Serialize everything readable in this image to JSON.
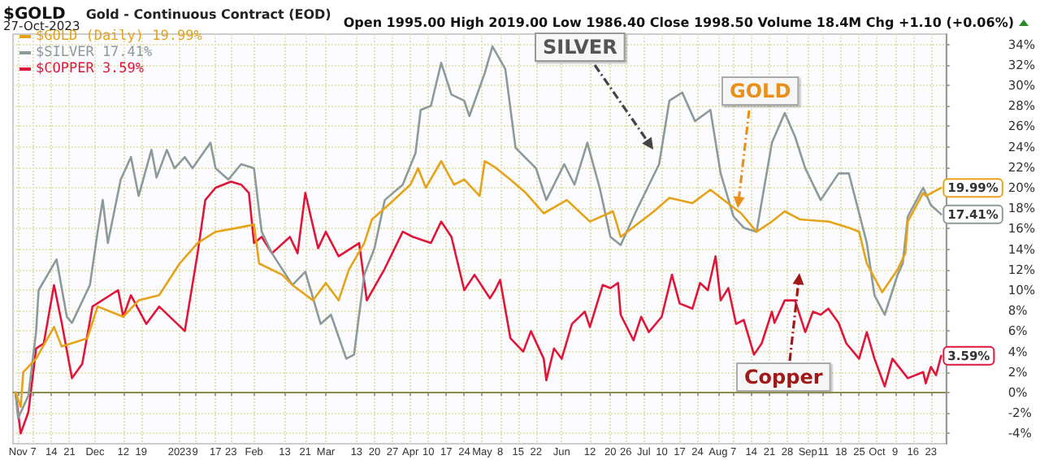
{
  "chart_data": {
    "type": "line",
    "title": "$GOLD",
    "subtitle": "Gold - Continuous Contract (EOD)",
    "annotations": [
      "27-Oct-2023",
      "Open 1995.00 High 2019.00 Low 1986.40 Close 1998.50 Volume 18.4M Chg +1.10 (+0.06%)",
      "SILVER",
      "GOLD",
      "Copper"
    ],
    "xlim": [
      "2022-10-30",
      "2023-10-29"
    ],
    "xticks": [
      {
        "value": "2022-11-01",
        "label": "Nov"
      },
      {
        "value": "2022-11-07",
        "label": "7"
      },
      {
        "value": "2022-11-14",
        "label": "14"
      },
      {
        "value": "2022-11-21",
        "label": "21"
      },
      {
        "value": "2022-12-01",
        "label": "Dec"
      },
      {
        "value": "2022-12-12",
        "label": "12"
      },
      {
        "value": "2022-12-19",
        "label": "19"
      },
      {
        "value": "2023-01-03",
        "label": "2023"
      },
      {
        "value": "2023-01-09",
        "label": "9"
      },
      {
        "value": "2023-01-17",
        "label": "17"
      },
      {
        "value": "2023-01-23",
        "label": "23"
      },
      {
        "value": "2023-02-01",
        "label": "Feb"
      },
      {
        "value": "2023-02-13",
        "label": "13"
      },
      {
        "value": "2023-02-21",
        "label": "21"
      },
      {
        "value": "2023-03-01",
        "label": "Mar"
      },
      {
        "value": "2023-03-13",
        "label": "13"
      },
      {
        "value": "2023-03-20",
        "label": "20"
      },
      {
        "value": "2023-03-27",
        "label": "27"
      },
      {
        "value": "2023-04-03",
        "label": "Apr"
      },
      {
        "value": "2023-04-10",
        "label": "10"
      },
      {
        "value": "2023-04-17",
        "label": "17"
      },
      {
        "value": "2023-04-24",
        "label": "24"
      },
      {
        "value": "2023-05-01",
        "label": "May"
      },
      {
        "value": "2023-05-08",
        "label": "8"
      },
      {
        "value": "2023-05-15",
        "label": "15"
      },
      {
        "value": "2023-05-22",
        "label": "22"
      },
      {
        "value": "2023-06-01",
        "label": "Jun"
      },
      {
        "value": "2023-06-12",
        "label": "12"
      },
      {
        "value": "2023-06-20",
        "label": "20"
      },
      {
        "value": "2023-06-26",
        "label": "26"
      },
      {
        "value": "2023-07-03",
        "label": "Jul"
      },
      {
        "value": "2023-07-10",
        "label": "10"
      },
      {
        "value": "2023-07-17",
        "label": "17"
      },
      {
        "value": "2023-07-24",
        "label": "24"
      },
      {
        "value": "2023-08-01",
        "label": "Aug"
      },
      {
        "value": "2023-08-07",
        "label": "7"
      },
      {
        "value": "2023-08-14",
        "label": "14"
      },
      {
        "value": "2023-08-21",
        "label": "21"
      },
      {
        "value": "2023-08-28",
        "label": "28"
      },
      {
        "value": "2023-09-05",
        "label": "Sep"
      },
      {
        "value": "2023-09-11",
        "label": "11"
      },
      {
        "value": "2023-09-18",
        "label": "18"
      },
      {
        "value": "2023-09-25",
        "label": "25"
      },
      {
        "value": "2023-10-02",
        "label": "Oct"
      },
      {
        "value": "2023-10-09",
        "label": "9"
      },
      {
        "value": "2023-10-16",
        "label": "16"
      },
      {
        "value": "2023-10-23",
        "label": "23"
      }
    ],
    "ylim": [
      -5,
      35
    ],
    "yticks": [
      {
        "value": -4,
        "label": "-4%"
      },
      {
        "value": -2,
        "label": "-2%"
      },
      {
        "value": 0,
        "label": "0%"
      },
      {
        "value": 2,
        "label": "2%"
      },
      {
        "value": 4,
        "label": "4%"
      },
      {
        "value": 6,
        "label": "6%"
      },
      {
        "value": 8,
        "label": "8%"
      },
      {
        "value": 10,
        "label": "10%"
      },
      {
        "value": 12,
        "label": "12%"
      },
      {
        "value": 14,
        "label": "14%"
      },
      {
        "value": 16,
        "label": "16%"
      },
      {
        "value": 18,
        "label": "18%"
      },
      {
        "value": 20,
        "label": "20%"
      },
      {
        "value": 22,
        "label": "22%"
      },
      {
        "value": 24,
        "label": "24%"
      },
      {
        "value": 26,
        "label": "26%"
      },
      {
        "value": 28,
        "label": "28%"
      },
      {
        "value": 30,
        "label": "30%"
      },
      {
        "value": 32,
        "label": "32%"
      },
      {
        "value": 34,
        "label": "34%"
      }
    ],
    "grid": true,
    "legend": "top left",
    "ref_lines": [
      {
        "axis": "y",
        "value": 0,
        "color": "#8c8c50"
      }
    ],
    "series": [
      {
        "name": "$GOLD (Daily) 19.99%",
        "color": "#e6a317",
        "x": [
          "2022-10-31",
          "2022-11-02",
          "2022-11-03",
          "2022-11-08",
          "2022-11-15",
          "2022-11-18",
          "2022-11-28",
          "2022-12-02",
          "2022-12-12",
          "2022-12-18",
          "2022-12-26",
          "2023-01-03",
          "2023-01-10",
          "2023-01-17",
          "2023-01-26",
          "2023-02-01",
          "2023-02-03",
          "2023-02-12",
          "2023-02-16",
          "2023-02-24",
          "2023-03-01",
          "2023-03-06",
          "2023-03-10",
          "2023-03-16",
          "2023-03-19",
          "2023-03-24",
          "2023-04-03",
          "2023-04-06",
          "2023-04-09",
          "2023-04-15",
          "2023-04-20",
          "2023-04-24",
          "2023-04-30",
          "2023-05-02",
          "2023-05-06",
          "2023-05-12",
          "2023-05-18",
          "2023-05-25",
          "2023-06-03",
          "2023-06-12",
          "2023-06-21",
          "2023-06-24",
          "2023-07-07",
          "2023-07-13",
          "2023-07-22",
          "2023-07-29",
          "2023-08-10",
          "2023-08-16",
          "2023-08-22",
          "2023-08-27",
          "2023-09-02",
          "2023-09-13",
          "2023-09-21",
          "2023-09-25",
          "2023-09-28",
          "2023-10-04",
          "2023-10-10",
          "2023-10-13",
          "2023-10-14",
          "2023-10-20",
          "2023-10-21",
          "2023-10-27"
        ],
        "values": [
          0,
          -1.4,
          2,
          3.3,
          6.4,
          4.5,
          5.3,
          8.4,
          7.4,
          9,
          9.5,
          12.6,
          14.6,
          15.7,
          16.1,
          16.4,
          12.6,
          11.5,
          10.5,
          9,
          10.7,
          9,
          12,
          14.6,
          16.9,
          18,
          20.3,
          21.9,
          20,
          22.6,
          20.3,
          20.8,
          19.2,
          22.6,
          22,
          20.8,
          19.5,
          17.5,
          18.8,
          16.7,
          17.7,
          15.2,
          17.7,
          19,
          18.5,
          19.8,
          17.5,
          15.7,
          16.7,
          17.7,
          16.9,
          16.7,
          16.1,
          15.7,
          12.6,
          9.8,
          12,
          13.6,
          16.7,
          19.5,
          19.2,
          19.99
        ],
        "value_labels": [
          null,
          null,
          null,
          null,
          null,
          null,
          null,
          null,
          null,
          null,
          null,
          null,
          null,
          null,
          null,
          null,
          null,
          null,
          null,
          null,
          null,
          null,
          null,
          null,
          null,
          null,
          null,
          null,
          null,
          null,
          null,
          null,
          null,
          null,
          null,
          null,
          null,
          null,
          null,
          null,
          null,
          null,
          null,
          null,
          null,
          null,
          null,
          null,
          null,
          null,
          null,
          null,
          null,
          null,
          null,
          null,
          null,
          null,
          null,
          null,
          null,
          "19.99%"
        ]
      },
      {
        "name": "$SILVER 17.41%",
        "color": "#8c9a9a",
        "x": [
          "2022-10-31",
          "2022-11-01",
          "2022-11-05",
          "2022-11-08",
          "2022-11-09",
          "2022-11-16",
          "2022-11-20",
          "2022-11-22",
          "2022-11-29",
          "2022-12-02",
          "2022-12-04",
          "2022-12-06",
          "2022-12-11",
          "2022-12-15",
          "2022-12-18",
          "2022-12-23",
          "2022-12-25",
          "2022-12-29",
          "2023-01-01",
          "2023-01-05",
          "2023-01-08",
          "2023-01-15",
          "2023-01-17",
          "2023-01-22",
          "2023-01-27",
          "2023-02-01",
          "2023-02-03",
          "2023-02-04",
          "2023-02-08",
          "2023-02-16",
          "2023-02-21",
          "2023-02-27",
          "2023-03-03",
          "2023-03-09",
          "2023-03-12",
          "2023-03-16",
          "2023-03-20",
          "2023-03-24",
          "2023-03-31",
          "2023-04-05",
          "2023-04-07",
          "2023-04-11",
          "2023-04-15",
          "2023-04-19",
          "2023-04-24",
          "2023-04-26",
          "2023-05-02",
          "2023-05-05",
          "2023-05-10",
          "2023-05-14",
          "2023-05-18",
          "2023-05-22",
          "2023-05-26",
          "2023-06-02",
          "2023-06-06",
          "2023-06-11",
          "2023-06-16",
          "2023-06-20",
          "2023-06-24",
          "2023-06-30",
          "2023-07-09",
          "2023-07-13",
          "2023-07-18",
          "2023-07-23",
          "2023-07-29",
          "2023-08-02",
          "2023-08-07",
          "2023-08-11",
          "2023-08-16",
          "2023-08-22",
          "2023-08-27",
          "2023-08-31",
          "2023-09-04",
          "2023-09-10",
          "2023-09-17",
          "2023-09-21",
          "2023-09-28",
          "2023-10-01",
          "2023-10-05",
          "2023-10-10",
          "2023-10-12",
          "2023-10-14",
          "2023-10-20",
          "2023-10-23",
          "2023-10-27"
        ],
        "values": [
          0,
          -2.5,
          -0.3,
          5.9,
          10,
          13,
          7.4,
          6.8,
          10.5,
          15.7,
          18.8,
          14.6,
          20.8,
          23,
          19.2,
          23.7,
          21,
          23.7,
          21.9,
          23,
          21.9,
          24.4,
          21.9,
          20.8,
          22.3,
          21.9,
          17.7,
          15.7,
          13.6,
          10.5,
          11.8,
          6.7,
          7.6,
          3.3,
          3.7,
          11.5,
          14.1,
          18.8,
          20.3,
          23.4,
          27.6,
          28,
          32.2,
          29.1,
          28.5,
          27,
          31.2,
          33.8,
          31.6,
          23.9,
          22.9,
          21.9,
          18.8,
          22.3,
          20.3,
          24.4,
          19.8,
          15.2,
          14.4,
          17.7,
          22.3,
          28.5,
          29.3,
          26.5,
          27.6,
          21.4,
          17.2,
          16.1,
          15.7,
          24.4,
          27.3,
          25,
          21.9,
          18.8,
          21.4,
          21.4,
          14.6,
          9.5,
          7.6,
          11.5,
          12.6,
          17.2,
          20,
          18.3,
          17.41
        ],
        "value_labels": [
          null,
          null,
          null,
          null,
          null,
          null,
          null,
          null,
          null,
          null,
          null,
          null,
          null,
          null,
          null,
          null,
          null,
          null,
          null,
          null,
          null,
          null,
          null,
          null,
          null,
          null,
          null,
          null,
          null,
          null,
          null,
          null,
          null,
          null,
          null,
          null,
          null,
          null,
          null,
          null,
          null,
          null,
          null,
          null,
          null,
          null,
          null,
          null,
          null,
          null,
          null,
          null,
          null,
          null,
          null,
          null,
          null,
          null,
          null,
          null,
          null,
          null,
          null,
          null,
          null,
          null,
          null,
          null,
          null,
          null,
          null,
          null,
          null,
          null,
          null,
          null,
          null,
          null,
          null,
          null,
          null,
          null,
          null,
          null,
          "17.41%"
        ]
      },
      {
        "name": "$COPPER 3.59%",
        "color": "#e0153a",
        "x": [
          "2022-10-31",
          "2022-11-02",
          "2022-11-05",
          "2022-11-07",
          "2022-11-08",
          "2022-11-11",
          "2022-11-15",
          "2022-11-18",
          "2022-11-22",
          "2022-11-26",
          "2022-11-30",
          "2022-12-10",
          "2022-12-12",
          "2022-12-15",
          "2022-12-21",
          "2022-12-26",
          "2023-01-05",
          "2023-01-10",
          "2023-01-13",
          "2023-01-17",
          "2023-01-23",
          "2023-01-27",
          "2023-01-30",
          "2023-02-01",
          "2023-02-04",
          "2023-02-08",
          "2023-02-15",
          "2023-02-18",
          "2023-02-21",
          "2023-02-26",
          "2023-03-01",
          "2023-03-06",
          "2023-03-14",
          "2023-03-17",
          "2023-03-24",
          "2023-03-31",
          "2023-04-04",
          "2023-04-11",
          "2023-04-15",
          "2023-04-19",
          "2023-04-24",
          "2023-04-28",
          "2023-05-04",
          "2023-05-06",
          "2023-05-08",
          "2023-05-12",
          "2023-05-17",
          "2023-05-20",
          "2023-05-25",
          "2023-05-26",
          "2023-05-29",
          "2023-06-01",
          "2023-06-05",
          "2023-06-10",
          "2023-06-12",
          "2023-06-17",
          "2023-06-20",
          "2023-06-23",
          "2023-06-24",
          "2023-06-29",
          "2023-07-02",
          "2023-07-05",
          "2023-07-10",
          "2023-07-14",
          "2023-07-17",
          "2023-07-22",
          "2023-07-25",
          "2023-07-28",
          "2023-07-31",
          "2023-08-02",
          "2023-08-05",
          "2023-08-08",
          "2023-08-11",
          "2023-08-15",
          "2023-08-18",
          "2023-08-22",
          "2023-08-23",
          "2023-08-27",
          "2023-08-31",
          "2023-09-04",
          "2023-09-07",
          "2023-09-10",
          "2023-09-13",
          "2023-09-17",
          "2023-09-20",
          "2023-09-25",
          "2023-09-28",
          "2023-10-01",
          "2023-10-05",
          "2023-10-08",
          "2023-10-14",
          "2023-10-20",
          "2023-10-21",
          "2023-10-23",
          "2023-10-25",
          "2023-10-27"
        ],
        "values": [
          0,
          -4,
          -1.9,
          2.2,
          4.3,
          4.8,
          10.5,
          6.8,
          1.4,
          2.8,
          8.4,
          10,
          7.4,
          9.5,
          6.7,
          8.4,
          6,
          13.6,
          18.8,
          20,
          20.6,
          20.3,
          19.5,
          14.6,
          15.2,
          13.6,
          15.2,
          13.6,
          19.5,
          14.1,
          15.7,
          13.3,
          14.6,
          9,
          12.1,
          15.7,
          15.2,
          14.6,
          16.7,
          15.2,
          10,
          11.5,
          9.2,
          10,
          11,
          5.3,
          4,
          6,
          3.3,
          1.2,
          4.3,
          3.3,
          6.7,
          7.9,
          6.4,
          10.5,
          10.2,
          10.7,
          7.6,
          5.1,
          7.4,
          5.9,
          7.4,
          11.5,
          8.7,
          8.2,
          10.7,
          10,
          13.3,
          9,
          10.2,
          6.7,
          7.1,
          3.7,
          4.8,
          7.9,
          6.8,
          9,
          9,
          5.9,
          7.9,
          7.6,
          8.2,
          6.8,
          4.8,
          3.3,
          5.9,
          3.3,
          0.6,
          3.3,
          1.4,
          2,
          0.9,
          2.5,
          1.7,
          3.59
        ],
        "value_labels": [
          null,
          null,
          null,
          null,
          null,
          null,
          null,
          null,
          null,
          null,
          null,
          null,
          null,
          null,
          null,
          null,
          null,
          null,
          null,
          null,
          null,
          null,
          null,
          null,
          null,
          null,
          null,
          null,
          null,
          null,
          null,
          null,
          null,
          null,
          null,
          null,
          null,
          null,
          null,
          null,
          null,
          null,
          null,
          null,
          null,
          null,
          null,
          null,
          null,
          null,
          null,
          null,
          null,
          null,
          null,
          null,
          null,
          null,
          null,
          null,
          null,
          null,
          null,
          null,
          null,
          null,
          null,
          null,
          null,
          null,
          null,
          null,
          null,
          null,
          null,
          null,
          null,
          null,
          null,
          null,
          null,
          null,
          null,
          null,
          null,
          null,
          null,
          null,
          null,
          null,
          null,
          null,
          null,
          null,
          null,
          "3.59%"
        ]
      }
    ]
  }
}
